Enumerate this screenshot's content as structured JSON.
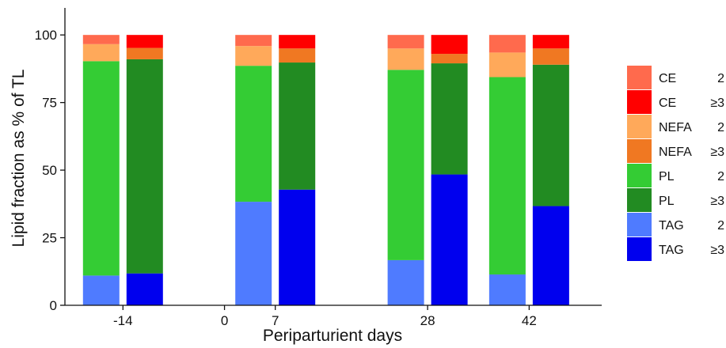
{
  "chart_data": {
    "type": "bar",
    "stacked": true,
    "xlabel": "Periparturient days",
    "ylabel": "Lipid fraction as % of TL",
    "xlim": [
      -22,
      52
    ],
    "ylim": [
      0,
      110
    ],
    "x_ticks": [
      -14,
      0,
      7,
      28,
      42
    ],
    "x_tick_labels": [
      "-14",
      "0",
      "7",
      "28",
      "42"
    ],
    "y_ticks": [
      0,
      25,
      50,
      75,
      100
    ],
    "y_tick_labels": [
      "0",
      "25",
      "50",
      "75",
      "100"
    ],
    "grid": false,
    "legend_position": "right",
    "stack_order": [
      "TAG",
      "PL",
      "NEFA",
      "CE"
    ],
    "series": [
      {
        "name": "CE",
        "group": "2",
        "color": "#FF6A4D"
      },
      {
        "name": "CE",
        "group": "≥3",
        "color": "#FF0000"
      },
      {
        "name": "NEFA",
        "group": "2",
        "color": "#FFA95A"
      },
      {
        "name": "NEFA",
        "group": "≥3",
        "color": "#F07822"
      },
      {
        "name": "PL",
        "group": "2",
        "color": "#34CC34"
      },
      {
        "name": "PL",
        "group": "≥3",
        "color": "#228B22"
      },
      {
        "name": "TAG",
        "group": "2",
        "color": "#4F7BFF"
      },
      {
        "name": "TAG",
        "group": "≥3",
        "color": "#0000EE"
      }
    ],
    "bars": [
      {
        "day": -14,
        "group": "2",
        "TAG": 11,
        "PL": 79.3,
        "NEFA": 6.3,
        "CE": 3.4
      },
      {
        "day": -14,
        "group": "≥3",
        "TAG": 11.8,
        "PL": 79.2,
        "NEFA": 4.2,
        "CE": 4.8
      },
      {
        "day": 7,
        "group": "2",
        "TAG": 38.3,
        "PL": 50.3,
        "NEFA": 7.3,
        "CE": 4.1
      },
      {
        "day": 7,
        "group": "≥3",
        "TAG": 42.8,
        "PL": 47,
        "NEFA": 5.2,
        "CE": 5
      },
      {
        "day": 28,
        "group": "2",
        "TAG": 16.7,
        "PL": 70.4,
        "NEFA": 7.9,
        "CE": 5
      },
      {
        "day": 28,
        "group": "≥3",
        "TAG": 48.4,
        "PL": 41.1,
        "NEFA": 3.5,
        "CE": 7
      },
      {
        "day": 42,
        "group": "2",
        "TAG": 11.4,
        "PL": 73,
        "NEFA": 9.1,
        "CE": 6.5
      },
      {
        "day": 42,
        "group": "≥3",
        "TAG": 36.7,
        "PL": 52.3,
        "NEFA": 6,
        "CE": 5
      }
    ]
  }
}
